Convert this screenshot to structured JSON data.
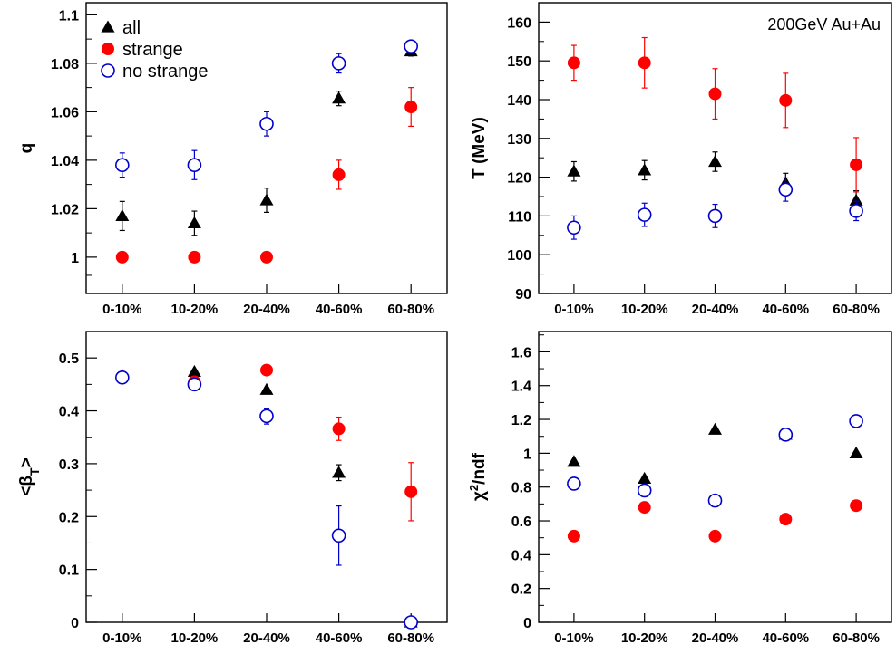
{
  "annotation": "200GeV Au+Au",
  "colors": {
    "all": "#000000",
    "strange": "#ff0000",
    "no_strange": "#0000cc",
    "axis": "#000000"
  },
  "chart_data": [
    {
      "id": "q",
      "type": "scatter",
      "ylabel": "q",
      "ylim": [
        0.985,
        1.105
      ],
      "yticks": [
        1,
        1.02,
        1.04,
        1.06,
        1.08,
        1.1
      ],
      "ytick_labels": [
        "1",
        "1.02",
        "1.04",
        "1.06",
        "1.08",
        "1.1"
      ],
      "categories": [
        "0-10%",
        "10-20%",
        "20-40%",
        "40-60%",
        "60-80%"
      ],
      "legend": [
        {
          "label": "all",
          "marker": "triangle"
        },
        {
          "label": "strange",
          "marker": "filled-circle"
        },
        {
          "label": "no strange",
          "marker": "open-circle"
        }
      ],
      "series": [
        {
          "name": "all",
          "marker": "triangle",
          "values": [
            1.017,
            1.014,
            1.0235,
            1.0655,
            1.085
          ],
          "errors": [
            0.006,
            0.005,
            0.005,
            0.003,
            0.002
          ]
        },
        {
          "name": "strange",
          "marker": "filled-circle",
          "values": [
            1.0,
            1.0,
            1.0,
            1.034,
            1.062
          ],
          "errors": [
            0.0,
            0.002,
            0.0,
            0.006,
            0.008
          ]
        },
        {
          "name": "no strange",
          "marker": "open-circle",
          "values": [
            1.038,
            1.038,
            1.055,
            1.08,
            1.087
          ],
          "errors": [
            0.005,
            0.006,
            0.005,
            0.004,
            0.0
          ]
        }
      ]
    },
    {
      "id": "T",
      "type": "scatter",
      "ylabel": "T (MeV)",
      "ylim": [
        90,
        165
      ],
      "yticks": [
        90,
        100,
        110,
        120,
        130,
        140,
        150,
        160
      ],
      "ytick_labels": [
        "90",
        "100",
        "110",
        "120",
        "130",
        "140",
        "150",
        "160"
      ],
      "categories": [
        "0-10%",
        "10-20%",
        "20-40%",
        "40-60%",
        "60-80%"
      ],
      "series": [
        {
          "name": "all",
          "marker": "triangle",
          "values": [
            121.5,
            121.8,
            124,
            118.5,
            114
          ],
          "errors": [
            2.5,
            2.5,
            2.5,
            2.5,
            2.5
          ]
        },
        {
          "name": "strange",
          "marker": "filled-circle",
          "values": [
            149.5,
            149.5,
            141.5,
            139.8,
            123.2
          ],
          "errors": [
            4.5,
            6.5,
            6.5,
            7,
            7
          ]
        },
        {
          "name": "no strange",
          "marker": "open-circle",
          "values": [
            107,
            110.3,
            110,
            116.8,
            111.3
          ],
          "errors": [
            3,
            3,
            3,
            3,
            2.5
          ]
        }
      ]
    },
    {
      "id": "betaT",
      "type": "scatter",
      "ylabel": "<βT>",
      "ylim": [
        0,
        0.55
      ],
      "yticks": [
        0,
        0.1,
        0.2,
        0.3,
        0.4,
        0.5
      ],
      "ytick_labels": [
        "0",
        "0.1",
        "0.2",
        "0.3",
        "0.4",
        "0.5"
      ],
      "categories": [
        "0-10%",
        "10-20%",
        "20-40%",
        "40-60%",
        "60-80%"
      ],
      "series": [
        {
          "name": "all",
          "marker": "triangle",
          "values": [
            0.467,
            0.474,
            0.44,
            0.283,
            0.0
          ],
          "errors": [
            0.0,
            0.0,
            0.0,
            0.015,
            0.0
          ]
        },
        {
          "name": "strange",
          "marker": "filled-circle",
          "values": [
            0.464,
            0.455,
            0.477,
            0.366,
            0.247
          ],
          "errors": [
            0.0,
            0.0,
            0.0,
            0.022,
            0.055
          ]
        },
        {
          "name": "no strange",
          "marker": "open-circle",
          "values": [
            0.463,
            0.45,
            0.39,
            0.164,
            0.0
          ],
          "errors": [
            0.0,
            0.0,
            0.015,
            0.056,
            0.0
          ]
        }
      ]
    },
    {
      "id": "chi2",
      "type": "scatter",
      "ylabel": "χ2/ndf",
      "ylim": [
        0,
        1.72
      ],
      "yticks": [
        0,
        0.2,
        0.4,
        0.6,
        0.8,
        1,
        1.2,
        1.4,
        1.6
      ],
      "ytick_labels": [
        "0",
        "0.2",
        "0.4",
        "0.6",
        "0.8",
        "1",
        "1.2",
        "1.4",
        "1.6"
      ],
      "categories": [
        "0-10%",
        "10-20%",
        "20-40%",
        "40-60%",
        "60-80%"
      ],
      "series": [
        {
          "name": "all",
          "marker": "triangle",
          "values": [
            0.95,
            0.85,
            1.14,
            1.11,
            1.0
          ]
        },
        {
          "name": "strange",
          "marker": "filled-circle",
          "values": [
            0.51,
            0.68,
            0.51,
            0.61,
            0.69
          ]
        },
        {
          "name": "no strange",
          "marker": "open-circle",
          "values": [
            0.82,
            0.78,
            0.72,
            1.11,
            1.19
          ]
        }
      ]
    }
  ]
}
